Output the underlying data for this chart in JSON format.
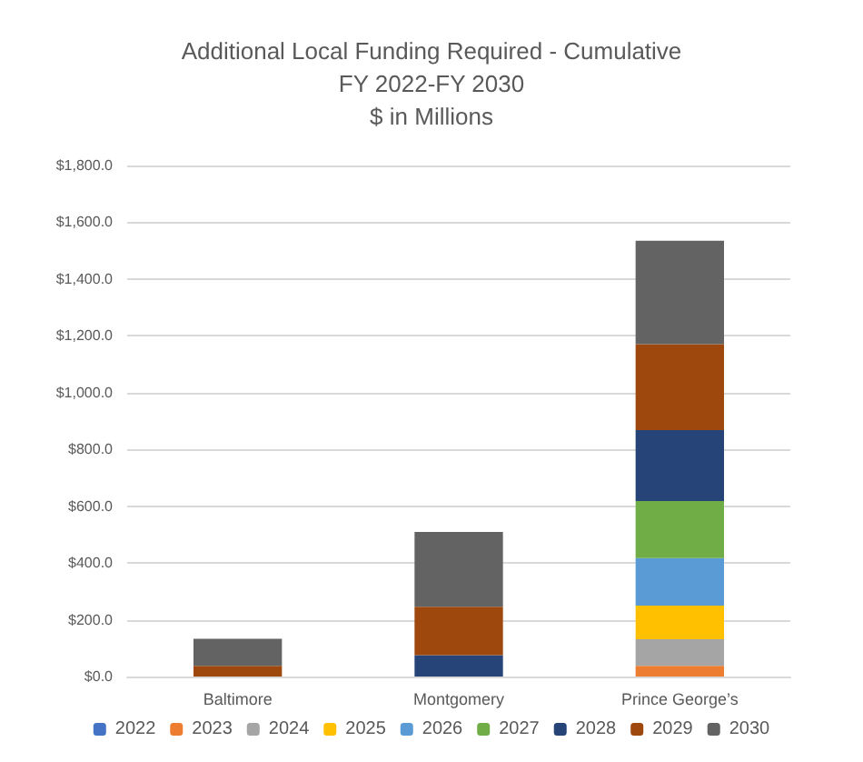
{
  "chart_data": {
    "type": "bar",
    "title": "Additional Local Funding Required - Cumulative\nFY 2022-FY 2030\n$ in Millions",
    "categories": [
      "Baltimore",
      "Montgomery",
      "Prince George’s"
    ],
    "stacked": true,
    "series": [
      {
        "name": "2022",
        "color": "#4472c4",
        "values": [
          0,
          0,
          0
        ]
      },
      {
        "name": "2023",
        "color": "#ed7d31",
        "values": [
          0,
          0,
          38
        ]
      },
      {
        "name": "2024",
        "color": "#a5a5a5",
        "values": [
          0,
          0,
          93
        ]
      },
      {
        "name": "2025",
        "color": "#ffc000",
        "values": [
          0,
          0,
          119
        ]
      },
      {
        "name": "2026",
        "color": "#5b9bd5",
        "values": [
          0,
          0,
          167
        ]
      },
      {
        "name": "2027",
        "color": "#70ad47",
        "values": [
          0,
          0,
          201
        ]
      },
      {
        "name": "2028",
        "color": "#264478",
        "values": [
          0,
          75,
          250
        ]
      },
      {
        "name": "2029",
        "color": "#9e480e",
        "values": [
          38,
          171,
          303
        ]
      },
      {
        "name": "2030",
        "color": "#636363",
        "values": [
          95,
          263,
          364
        ]
      }
    ],
    "ylim": [
      0,
      1800
    ],
    "yticks": [
      {
        "value": 0,
        "label": "$0.0"
      },
      {
        "value": 200,
        "label": "$200.0"
      },
      {
        "value": 400,
        "label": "$400.0"
      },
      {
        "value": 600,
        "label": "$600.0"
      },
      {
        "value": 800,
        "label": "$800.0"
      },
      {
        "value": 1000,
        "label": "$1,000.0"
      },
      {
        "value": 1200,
        "label": "$1,200.0"
      },
      {
        "value": 1400,
        "label": "$1,400.0"
      },
      {
        "value": 1600,
        "label": "$1,600.0"
      },
      {
        "value": 1800,
        "label": "$1,800.0"
      }
    ],
    "grid": "y",
    "legend": "bottom"
  }
}
